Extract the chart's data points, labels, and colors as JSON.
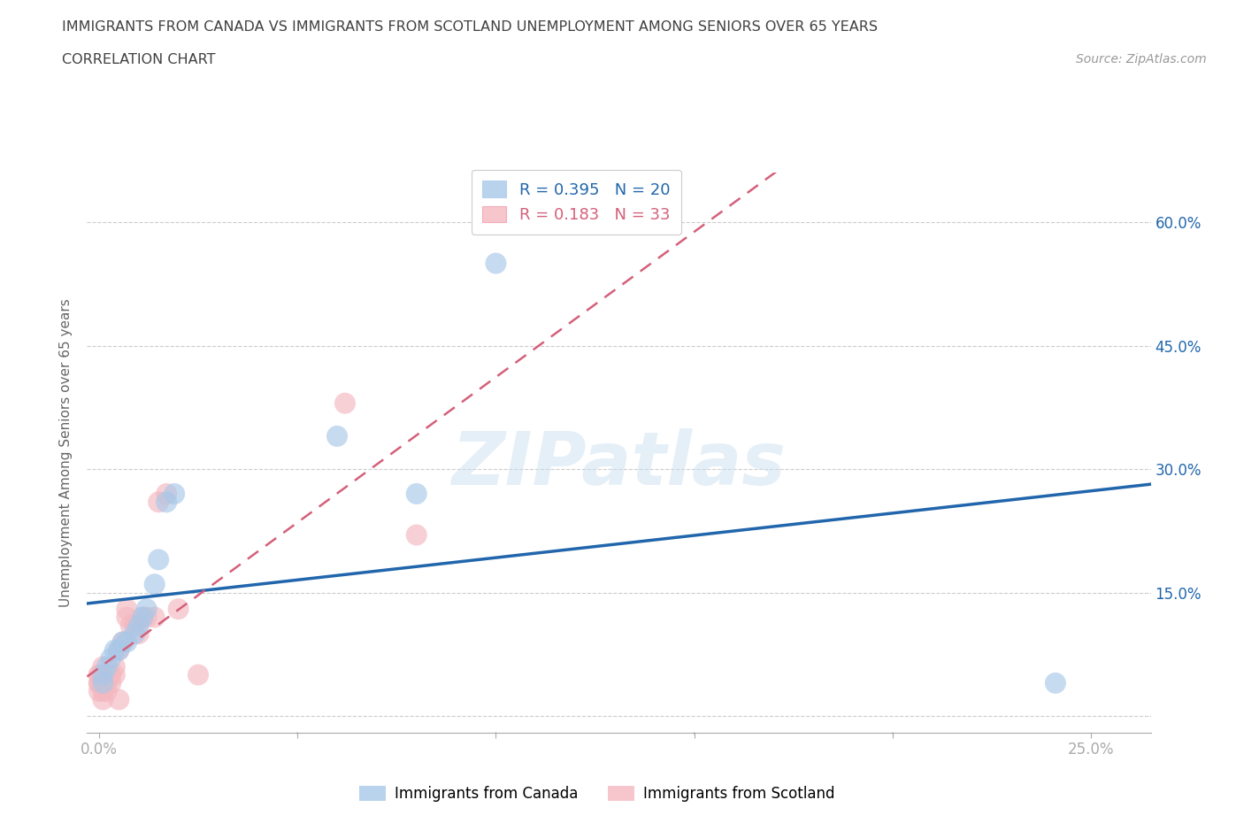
{
  "title_line1": "IMMIGRANTS FROM CANADA VS IMMIGRANTS FROM SCOTLAND UNEMPLOYMENT AMONG SENIORS OVER 65 YEARS",
  "title_line2": "CORRELATION CHART",
  "source": "Source: ZipAtlas.com",
  "ylabel": "Unemployment Among Seniors over 65 years",
  "watermark": "ZIPatlas",
  "canada_color": "#a8c8e8",
  "scotland_color": "#f4b8c0",
  "canada_line_color": "#2166ac",
  "scotland_line_color": "#d4607a",
  "canada_R": 0.395,
  "canada_N": 20,
  "scotland_R": 0.183,
  "scotland_N": 33,
  "xlim": [
    -0.003,
    0.265
  ],
  "ylim": [
    -0.02,
    0.66
  ],
  "xticks": [
    0.0,
    0.05,
    0.1,
    0.15,
    0.2,
    0.25
  ],
  "xtick_labels": [
    "0.0%",
    "",
    "",
    "",
    "",
    "25.0%"
  ],
  "yticks": [
    0.0,
    0.15,
    0.3,
    0.45,
    0.6
  ],
  "ytick_labels": [
    "",
    "15.0%",
    "30.0%",
    "45.0%",
    "60.0%"
  ],
  "canada_x": [
    0.001,
    0.001,
    0.002,
    0.003,
    0.004,
    0.005,
    0.006,
    0.007,
    0.009,
    0.01,
    0.011,
    0.012,
    0.014,
    0.015,
    0.017,
    0.019,
    0.06,
    0.08,
    0.1,
    0.241
  ],
  "canada_y": [
    0.04,
    0.05,
    0.06,
    0.07,
    0.08,
    0.08,
    0.09,
    0.09,
    0.1,
    0.11,
    0.12,
    0.13,
    0.16,
    0.19,
    0.26,
    0.27,
    0.34,
    0.27,
    0.55,
    0.04
  ],
  "scotland_x": [
    0.0,
    0.0,
    0.0,
    0.0,
    0.0,
    0.001,
    0.001,
    0.001,
    0.001,
    0.002,
    0.002,
    0.002,
    0.003,
    0.003,
    0.004,
    0.004,
    0.005,
    0.005,
    0.006,
    0.007,
    0.007,
    0.008,
    0.009,
    0.01,
    0.011,
    0.012,
    0.014,
    0.015,
    0.017,
    0.02,
    0.025,
    0.062,
    0.08
  ],
  "scotland_y": [
    0.03,
    0.04,
    0.04,
    0.05,
    0.05,
    0.02,
    0.03,
    0.05,
    0.06,
    0.03,
    0.04,
    0.05,
    0.04,
    0.05,
    0.05,
    0.06,
    0.02,
    0.08,
    0.09,
    0.12,
    0.13,
    0.11,
    0.11,
    0.1,
    0.12,
    0.12,
    0.12,
    0.26,
    0.27,
    0.13,
    0.05,
    0.38,
    0.22
  ],
  "background_color": "#ffffff",
  "grid_color": "#cccccc",
  "axis_color": "#aaaaaa",
  "title_color": "#404040",
  "tick_label_color": "#2166ac",
  "right_label_color": "#2166ac"
}
